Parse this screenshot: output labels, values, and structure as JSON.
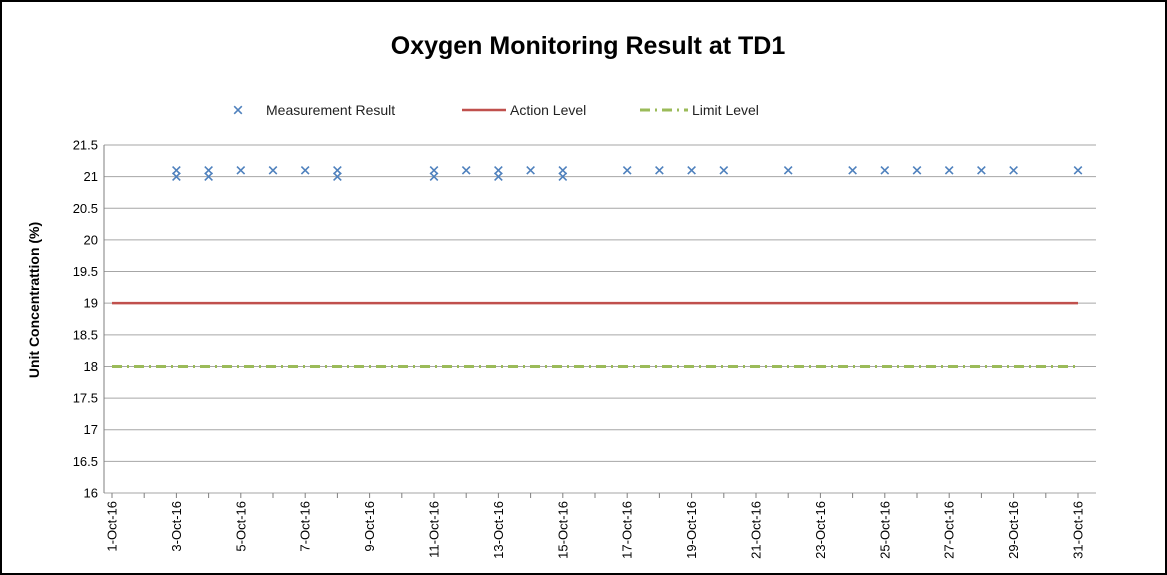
{
  "chart_data": {
    "type": "scatter",
    "title": "Oxygen Monitoring Result at TD1",
    "xlabel": "",
    "ylabel": "Unit Concentrattion (%)",
    "ylim": [
      16,
      21.5
    ],
    "yticks": [
      "16",
      "16.5",
      "17",
      "17.5",
      "18",
      "18.5",
      "19",
      "19.5",
      "20",
      "20.5",
      "21",
      "21.5"
    ],
    "xlim_day": [
      1,
      31
    ],
    "xticks": [
      "1-Oct-16",
      "3-Oct-16",
      "5-Oct-16",
      "7-Oct-16",
      "9-Oct-16",
      "11-Oct-16",
      "13-Oct-16",
      "15-Oct-16",
      "17-Oct-16",
      "19-Oct-16",
      "21-Oct-16",
      "23-Oct-16",
      "25-Oct-16",
      "27-Oct-16",
      "29-Oct-16",
      "31-Oct-16"
    ],
    "grid": true,
    "legend_position": "top",
    "series": [
      {
        "name": "Measurement Result",
        "kind": "markers",
        "marker": "x",
        "color": "#4f81bd",
        "x": [
          3,
          3,
          4,
          4,
          5,
          6,
          7,
          8,
          8,
          11,
          11,
          12,
          13,
          13,
          14,
          15,
          15,
          17,
          18,
          19,
          20,
          22,
          24,
          25,
          26,
          27,
          28,
          29,
          31
        ],
        "y": [
          21.1,
          21.0,
          21.1,
          21.0,
          21.1,
          21.1,
          21.1,
          21.1,
          21.0,
          21.1,
          21.0,
          21.1,
          21.1,
          21.0,
          21.1,
          21.1,
          21.0,
          21.1,
          21.1,
          21.1,
          21.1,
          21.1,
          21.1,
          21.1,
          21.1,
          21.1,
          21.1,
          21.1,
          21.1
        ]
      },
      {
        "name": "Action Level",
        "kind": "line",
        "style": "solid",
        "color": "#c0504d",
        "x": [
          1,
          31
        ],
        "y": [
          19,
          19
        ]
      },
      {
        "name": "Limit Level",
        "kind": "line",
        "style": "dash-dot",
        "color": "#9bbb59",
        "x": [
          1,
          31
        ],
        "y": [
          18,
          18
        ]
      }
    ]
  }
}
